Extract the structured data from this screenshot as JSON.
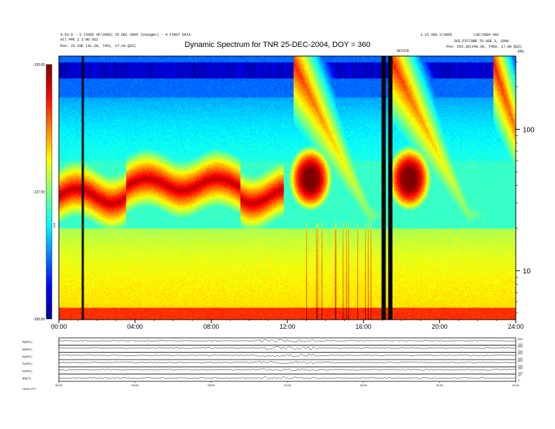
{
  "header": {
    "left_line1": "4.53.0 - 3 (2005 SP/2006) 25 DEC 2004 (Voyager) - 4 FIRST DATA",
    "left_line2": "All PPE 2 3 NO 052",
    "left_line3": "Pos:    23.10E (41.28, 7451, 17.19 QSZ)",
    "right_line1": "1.15 VEG 2/2005",
    "right_line2": "SCE_PICTURE TO USE 3, 2000",
    "right_line3": "Pos:    253.38(240.30, 7450, 17.80 QSZ)",
    "right_top": "LSE/2004 A01",
    "event_label": "DEVICE"
  },
  "title": "Dynamic Spectrum for TNR 25-DEC-2004, DOY = 360",
  "colors": {
    "bg": "#ffffff",
    "axis": "#000000"
  },
  "chart_data": [
    {
      "type": "heatmap",
      "title": "Dynamic Spectrum for TNR 25-DEC-2004, DOY = 360",
      "x_ticks": [
        "00:00",
        "04:00",
        "08:00",
        "12:00",
        "16:00",
        "20:00",
        "24:00"
      ],
      "xlim": [
        0,
        24
      ],
      "y_scale": "log",
      "ylim": [
        4.5,
        330
      ],
      "y_ticks": [
        "100",
        "10"
      ],
      "y_unit": "kHz",
      "colorbar": {
        "ticks": [
          "-120.00",
          "-137.50",
          "-155.00"
        ],
        "range": [
          -155,
          -120
        ],
        "label": "TNR",
        "colormap": "jet"
      },
      "data_gaps_hours": [
        1.2,
        16.95,
        17.3
      ]
    },
    {
      "type": "line",
      "panels": [
        "B(ADC)",
        "B(ADC)",
        "B(ADC)",
        "E(ADC)",
        "E(ADC)",
        "|B|(nT)"
      ],
      "right_ticks": [
        [
          "200",
          "100"
        ],
        [
          "500",
          "250"
        ],
        [
          "200",
          "100"
        ],
        [
          "500",
          "250"
        ],
        [
          "200",
          "100"
        ],
        [
          "10",
          "5"
        ]
      ],
      "x_ticks": [
        "00:00",
        "04:00",
        "08:00",
        "12:00",
        "16:00",
        "20:00",
        "24:00"
      ],
      "footer_label": "Hours  UTC"
    }
  ]
}
